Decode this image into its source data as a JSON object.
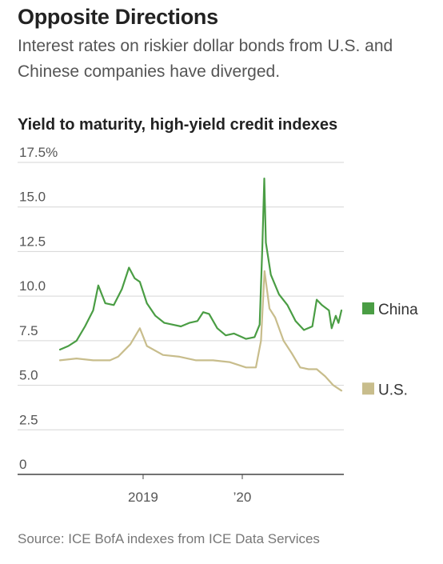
{
  "headline": "Opposite Directions",
  "dek": "Interest rates on riskier dollar bonds from U.S. and Chinese companies have diverged.",
  "source": "Source: ICE BofA indexes from ICE Data Services",
  "chart_data": {
    "type": "line",
    "title": "Yield to maturity, high-yield credit indexes",
    "ylim": [
      0,
      17.5
    ],
    "xlim": [
      "2018-03-01",
      "2020-12-31"
    ],
    "y_ticks": [
      0,
      2.5,
      5.0,
      7.5,
      10.0,
      12.5,
      15.0,
      17.5
    ],
    "y_tick_labels": [
      "0",
      "2.5",
      "5.0",
      "7.5",
      "10.0",
      "12.5",
      "15.0",
      "17.5%"
    ],
    "x_ticks": [
      "2019-01-01",
      "2020-01-01"
    ],
    "x_tick_labels": [
      "2019",
      "’20"
    ],
    "grid": true,
    "legend": "right, beside line ends",
    "series": [
      {
        "name": "China",
        "color": "#4a9d44",
        "points": [
          [
            "2018-03-01",
            7.0
          ],
          [
            "2018-04-01",
            7.2
          ],
          [
            "2018-05-01",
            7.5
          ],
          [
            "2018-06-01",
            8.3
          ],
          [
            "2018-07-01",
            9.2
          ],
          [
            "2018-07-20",
            10.6
          ],
          [
            "2018-08-15",
            9.6
          ],
          [
            "2018-09-15",
            9.5
          ],
          [
            "2018-10-15",
            10.4
          ],
          [
            "2018-11-10",
            11.6
          ],
          [
            "2018-12-01",
            11.0
          ],
          [
            "2018-12-20",
            10.8
          ],
          [
            "2019-01-15",
            9.6
          ],
          [
            "2019-02-15",
            8.9
          ],
          [
            "2019-03-20",
            8.5
          ],
          [
            "2019-04-20",
            8.4
          ],
          [
            "2019-05-20",
            8.3
          ],
          [
            "2019-06-20",
            8.5
          ],
          [
            "2019-07-20",
            8.6
          ],
          [
            "2019-08-10",
            9.1
          ],
          [
            "2019-09-01",
            9.0
          ],
          [
            "2019-10-01",
            8.2
          ],
          [
            "2019-11-01",
            7.8
          ],
          [
            "2019-12-01",
            7.9
          ],
          [
            "2020-01-15",
            7.6
          ],
          [
            "2020-02-15",
            7.7
          ],
          [
            "2020-03-05",
            8.4
          ],
          [
            "2020-03-15",
            12.8
          ],
          [
            "2020-03-22",
            16.6
          ],
          [
            "2020-03-28",
            13.0
          ],
          [
            "2020-04-15",
            11.2
          ],
          [
            "2020-05-15",
            10.1
          ],
          [
            "2020-06-15",
            9.5
          ],
          [
            "2020-07-15",
            8.6
          ],
          [
            "2020-08-15",
            8.1
          ],
          [
            "2020-09-15",
            8.3
          ],
          [
            "2020-10-01",
            9.8
          ],
          [
            "2020-10-20",
            9.5
          ],
          [
            "2020-11-15",
            9.2
          ],
          [
            "2020-11-25",
            8.2
          ],
          [
            "2020-12-10",
            8.9
          ],
          [
            "2020-12-20",
            8.5
          ],
          [
            "2020-12-31",
            9.2
          ]
        ]
      },
      {
        "name": "U.S.",
        "color": "#c8bd8c",
        "points": [
          [
            "2018-03-01",
            6.4
          ],
          [
            "2018-05-01",
            6.5
          ],
          [
            "2018-07-01",
            6.4
          ],
          [
            "2018-09-01",
            6.4
          ],
          [
            "2018-10-01",
            6.6
          ],
          [
            "2018-11-15",
            7.3
          ],
          [
            "2018-12-20",
            8.2
          ],
          [
            "2019-01-15",
            7.2
          ],
          [
            "2019-03-15",
            6.7
          ],
          [
            "2019-05-15",
            6.6
          ],
          [
            "2019-07-15",
            6.4
          ],
          [
            "2019-09-15",
            6.4
          ],
          [
            "2019-11-15",
            6.3
          ],
          [
            "2020-01-15",
            6.0
          ],
          [
            "2020-02-20",
            6.0
          ],
          [
            "2020-03-10",
            7.5
          ],
          [
            "2020-03-23",
            11.4
          ],
          [
            "2020-04-10",
            9.3
          ],
          [
            "2020-05-01",
            8.8
          ],
          [
            "2020-06-01",
            7.5
          ],
          [
            "2020-07-01",
            6.8
          ],
          [
            "2020-08-01",
            6.0
          ],
          [
            "2020-09-01",
            5.9
          ],
          [
            "2020-10-01",
            5.9
          ],
          [
            "2020-11-01",
            5.5
          ],
          [
            "2020-12-01",
            5.0
          ],
          [
            "2020-12-31",
            4.7
          ]
        ]
      }
    ]
  }
}
